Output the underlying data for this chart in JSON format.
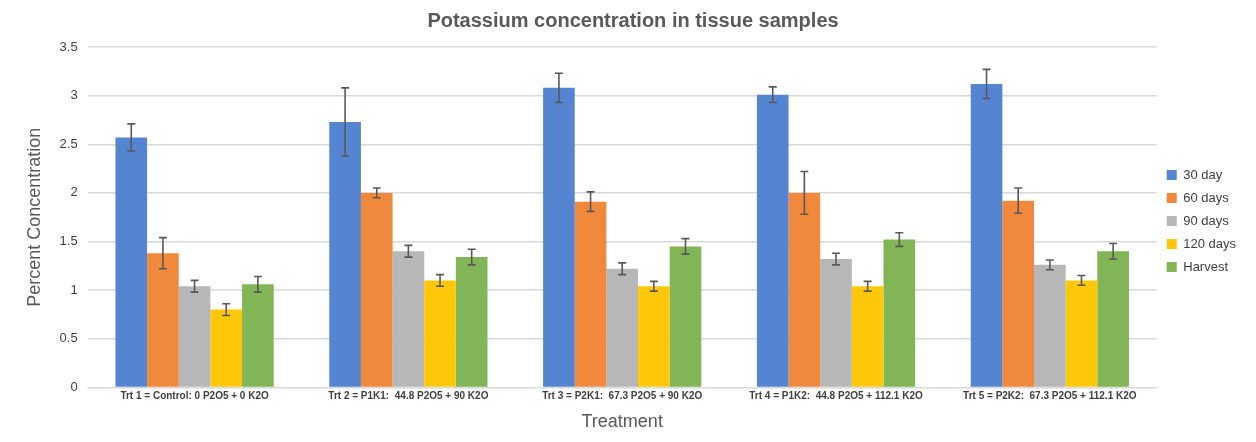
{
  "chart_data": {
    "type": "bar",
    "title": "Potassium concentration in tissue samples",
    "xlabel": "Treatment",
    "ylabel": "Percent Concentration",
    "categories": [
      "Trt 1 = Control: 0 P2O5 + 0 K2O",
      "Trt 2 = P1K1:  44.8 P2O5 + 90 K2O",
      "Trt 3 = P2K1:  67.3 P2O5 + 90 K2O",
      "Trt 4 = P1K2:  44.8 P2O5 + 112.1 K2O",
      "Trt 5 = P2K2:  67.3 P2O5 + 112.1 K2O"
    ],
    "series": [
      {
        "name": "30 day",
        "color": "#5585d0",
        "values": [
          2.57,
          2.73,
          3.08,
          3.01,
          3.12
        ],
        "errors": [
          0.14,
          0.35,
          0.15,
          0.08,
          0.15
        ]
      },
      {
        "name": "60 days",
        "color": "#f0893c",
        "values": [
          1.38,
          2.0,
          1.91,
          2.0,
          1.92
        ],
        "errors": [
          0.16,
          0.05,
          0.1,
          0.22,
          0.13
        ]
      },
      {
        "name": "90 days",
        "color": "#b7b7b7",
        "values": [
          1.04,
          1.4,
          1.22,
          1.32,
          1.26
        ],
        "errors": [
          0.06,
          0.06,
          0.06,
          0.06,
          0.05
        ]
      },
      {
        "name": "120 days",
        "color": "#fec80a",
        "values": [
          0.8,
          1.1,
          1.04,
          1.04,
          1.1
        ],
        "errors": [
          0.06,
          0.06,
          0.05,
          0.05,
          0.05
        ]
      },
      {
        "name": "Harvest",
        "color": "#82b555",
        "values": [
          1.06,
          1.34,
          1.45,
          1.52,
          1.4
        ],
        "errors": [
          0.08,
          0.08,
          0.08,
          0.07,
          0.08
        ]
      }
    ],
    "ylim": [
      0,
      3.5
    ],
    "yticks": [
      0,
      0.5,
      1,
      1.5,
      2,
      2.5,
      3,
      3.5
    ],
    "grid": "y",
    "legend": "right"
  }
}
